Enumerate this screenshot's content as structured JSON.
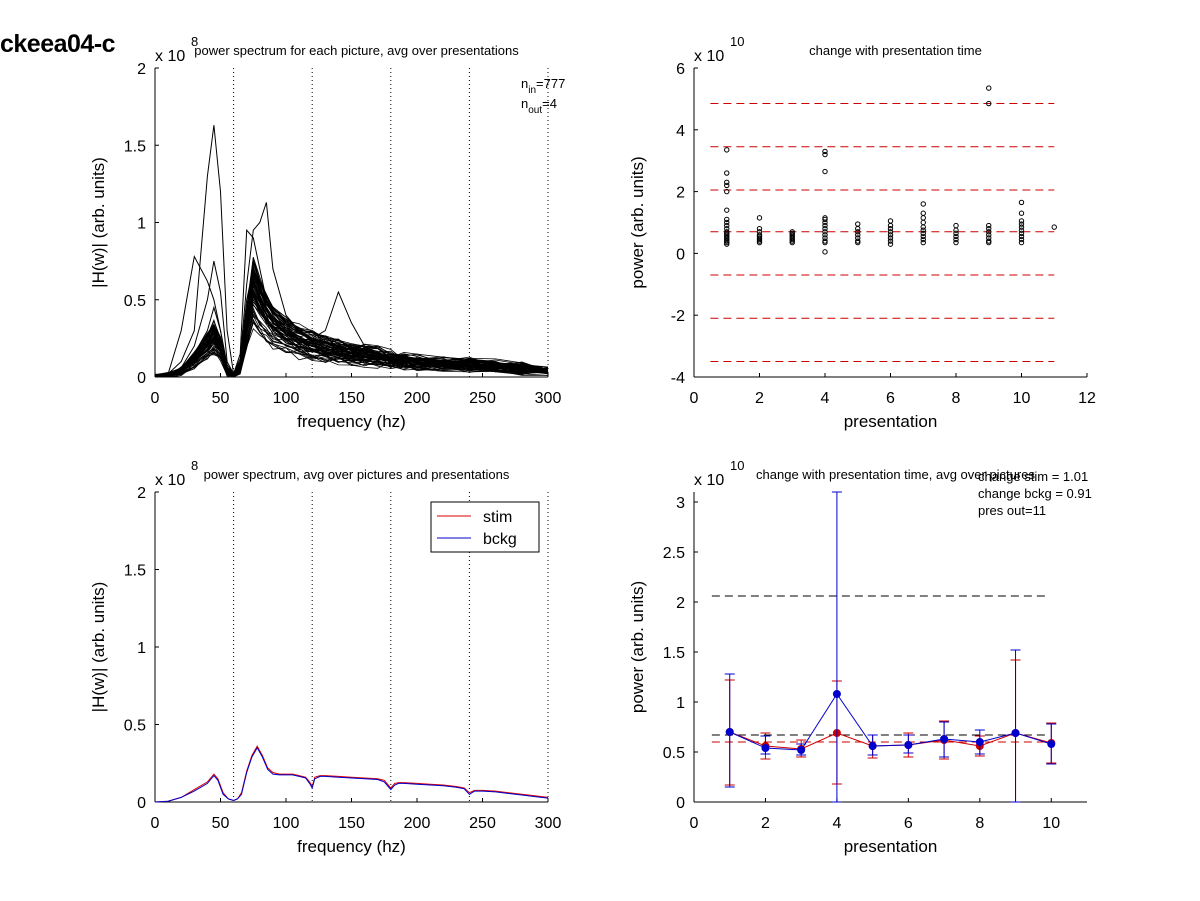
{
  "figure": {
    "title": "ckeea04-c"
  },
  "chart_data": [
    {
      "id": "tl",
      "type": "line",
      "title": "power spectrum for each picture, avg over presentations",
      "xlabel": "frequency (hz)",
      "ylabel": "|H(w)| (arb. units)",
      "exponent": "x 10",
      "exponent_power": "8",
      "xlim": [
        0,
        300
      ],
      "ylim": [
        0,
        2
      ],
      "xticks": [
        0,
        50,
        100,
        150,
        200,
        250,
        300
      ],
      "xtick_labels": [
        "0",
        "50",
        "100",
        "150",
        "200",
        "250",
        "300"
      ],
      "yticks": [
        0,
        0.5,
        1,
        1.5,
        2
      ],
      "ytick_labels": [
        "0",
        "0.5",
        "1",
        "1.5",
        "2"
      ],
      "vlines": [
        60,
        120,
        180,
        240,
        300
      ],
      "annotations": [
        {
          "text": "n",
          "sub": "in",
          "rest": "=777"
        },
        {
          "text": "n",
          "sub": "out",
          "rest": "=4"
        }
      ],
      "frequency": [
        0,
        10,
        20,
        30,
        40,
        45,
        50,
        55,
        60,
        65,
        70,
        75,
        80,
        85,
        90,
        100,
        110,
        120,
        130,
        140,
        150,
        160,
        170,
        180,
        190,
        200,
        220,
        240,
        260,
        280,
        300
      ],
      "n_traces": 60,
      "envelope_mean": [
        0,
        0.01,
        0.04,
        0.12,
        0.22,
        0.28,
        0.2,
        0.04,
        0.01,
        0.06,
        0.35,
        0.6,
        0.5,
        0.42,
        0.36,
        0.3,
        0.25,
        0.22,
        0.2,
        0.18,
        0.16,
        0.15,
        0.14,
        0.12,
        0.11,
        0.1,
        0.09,
        0.08,
        0.07,
        0.06,
        0.04
      ],
      "outlier_traces": [
        {
          "values": [
            0,
            0.02,
            0.3,
            0.78,
            0.62,
            0.5,
            0.3,
            0.08,
            0.02,
            0.1,
            0.4,
            0.55,
            0.48,
            0.4,
            0.3,
            0.22,
            0.2,
            0.18,
            0.16,
            0.15,
            0.14,
            0.13,
            0.12,
            0.11,
            0.1,
            0.1,
            0.09,
            0.08,
            0.07,
            0.06,
            0.05
          ]
        },
        {
          "values": [
            0,
            0.02,
            0.1,
            0.3,
            1.3,
            1.63,
            1.2,
            0.3,
            0.02,
            0.1,
            0.5,
            0.7,
            0.6,
            0.45,
            0.38,
            0.3,
            0.25,
            0.22,
            0.2,
            0.18,
            0.16,
            0.15,
            0.14,
            0.12,
            0.11,
            0.1,
            0.09,
            0.08,
            0.07,
            0.06,
            0.05
          ]
        },
        {
          "values": [
            0,
            0.01,
            0.06,
            0.2,
            0.5,
            0.75,
            0.55,
            0.1,
            0.02,
            0.12,
            0.6,
            0.95,
            1.0,
            1.13,
            0.7,
            0.4,
            0.3,
            0.25,
            0.22,
            0.2,
            0.18,
            0.16,
            0.15,
            0.13,
            0.12,
            0.11,
            0.1,
            0.09,
            0.08,
            0.07,
            0.05
          ]
        },
        {
          "values": [
            0,
            0.01,
            0.05,
            0.15,
            0.3,
            0.45,
            0.3,
            0.06,
            0.02,
            0.15,
            0.95,
            0.9,
            0.7,
            0.5,
            0.4,
            0.3,
            0.28,
            0.25,
            0.3,
            0.55,
            0.35,
            0.2,
            0.15,
            0.13,
            0.12,
            0.11,
            0.1,
            0.09,
            0.08,
            0.07,
            0.05
          ]
        }
      ]
    },
    {
      "id": "tr",
      "type": "scatter",
      "title": "change with presentation time",
      "xlabel": "presentation",
      "ylabel": "power (arb. units)",
      "exponent": "x 10",
      "exponent_power": "10",
      "xlim": [
        0,
        12
      ],
      "ylim": [
        -4,
        6
      ],
      "xticks": [
        0,
        2,
        4,
        6,
        8,
        10,
        12
      ],
      "xtick_labels": [
        "0",
        "2",
        "4",
        "6",
        "8",
        "10",
        "12"
      ],
      "yticks": [
        -4,
        -2,
        0,
        2,
        4,
        6
      ],
      "ytick_labels": [
        "-4",
        "-2",
        "0",
        "2",
        "4",
        "6"
      ],
      "hlines": [
        -3.5,
        -2.1,
        -0.7,
        0.7,
        2.05,
        3.45,
        4.85
      ],
      "hline_color": "#cc0000",
      "points": [
        {
          "x": 1,
          "y": [
            0.3,
            0.35,
            0.4,
            0.45,
            0.5,
            0.55,
            0.6,
            0.65,
            0.7,
            0.8,
            0.9,
            1.0,
            1.1,
            1.4,
            2.0,
            2.2,
            2.3,
            2.6,
            3.35
          ]
        },
        {
          "x": 2,
          "y": [
            0.35,
            0.4,
            0.45,
            0.5,
            0.55,
            0.6,
            0.7,
            0.8,
            1.15
          ]
        },
        {
          "x": 3,
          "y": [
            0.35,
            0.4,
            0.45,
            0.5,
            0.55,
            0.6,
            0.65,
            0.7
          ]
        },
        {
          "x": 4,
          "y": [
            0.05,
            0.35,
            0.4,
            0.5,
            0.6,
            0.7,
            0.8,
            0.9,
            1.0,
            1.1,
            1.15,
            2.65,
            3.2,
            3.3
          ]
        },
        {
          "x": 5,
          "y": [
            0.35,
            0.4,
            0.5,
            0.6,
            0.7,
            0.8,
            0.95
          ]
        },
        {
          "x": 6,
          "y": [
            0.3,
            0.4,
            0.5,
            0.6,
            0.7,
            0.8,
            0.9,
            1.05
          ]
        },
        {
          "x": 7,
          "y": [
            0.35,
            0.45,
            0.55,
            0.65,
            0.75,
            0.85,
            1.0,
            1.15,
            1.3,
            1.6
          ]
        },
        {
          "x": 8,
          "y": [
            0.35,
            0.45,
            0.55,
            0.65,
            0.75,
            0.9
          ]
        },
        {
          "x": 9,
          "y": [
            0.35,
            0.4,
            0.5,
            0.6,
            0.7,
            0.8,
            0.9,
            4.85,
            5.35
          ]
        },
        {
          "x": 10,
          "y": [
            0.35,
            0.45,
            0.55,
            0.65,
            0.75,
            0.85,
            0.95,
            1.05,
            1.3,
            1.65
          ]
        },
        {
          "x": 11,
          "y": [
            0.85
          ]
        }
      ]
    },
    {
      "id": "bl",
      "type": "line",
      "title": "power spectrum, avg over pictures and presentations",
      "xlabel": "frequency (hz)",
      "ylabel": "|H(w)| (arb. units)",
      "exponent": "x 10",
      "exponent_power": "8",
      "xlim": [
        0,
        300
      ],
      "ylim": [
        0,
        2
      ],
      "xticks": [
        0,
        50,
        100,
        150,
        200,
        250,
        300
      ],
      "xtick_labels": [
        "0",
        "50",
        "100",
        "150",
        "200",
        "250",
        "300"
      ],
      "yticks": [
        0,
        0.5,
        1,
        1.5,
        2
      ],
      "ytick_labels": [
        "0",
        "0.5",
        "1",
        "1.5",
        "2"
      ],
      "vlines": [
        60,
        120,
        180,
        240,
        300
      ],
      "legend": {
        "placement": "top-right"
      },
      "x": [
        0,
        10,
        20,
        30,
        40,
        45,
        48,
        52,
        56,
        60,
        63,
        66,
        70,
        74,
        78,
        82,
        86,
        90,
        95,
        100,
        105,
        110,
        115,
        118,
        120,
        122,
        126,
        130,
        140,
        150,
        160,
        170,
        175,
        178,
        180,
        183,
        186,
        190,
        200,
        210,
        220,
        230,
        236,
        240,
        244,
        250,
        260,
        270,
        280,
        290,
        300
      ],
      "series": [
        {
          "name": "stim",
          "color": "#dd0000",
          "values": [
            0,
            0.005,
            0.03,
            0.08,
            0.13,
            0.18,
            0.15,
            0.06,
            0.02,
            0.01,
            0.02,
            0.06,
            0.2,
            0.3,
            0.36,
            0.3,
            0.22,
            0.19,
            0.18,
            0.18,
            0.18,
            0.17,
            0.16,
            0.13,
            0.1,
            0.16,
            0.17,
            0.17,
            0.165,
            0.16,
            0.155,
            0.15,
            0.14,
            0.11,
            0.09,
            0.12,
            0.125,
            0.125,
            0.12,
            0.115,
            0.11,
            0.1,
            0.09,
            0.06,
            0.075,
            0.075,
            0.07,
            0.06,
            0.05,
            0.04,
            0.03
          ]
        },
        {
          "name": "bckg",
          "color": "#0000cc",
          "values": [
            0,
            0.005,
            0.03,
            0.07,
            0.12,
            0.17,
            0.14,
            0.05,
            0.02,
            0.01,
            0.02,
            0.05,
            0.19,
            0.29,
            0.35,
            0.29,
            0.21,
            0.18,
            0.175,
            0.175,
            0.175,
            0.165,
            0.155,
            0.12,
            0.09,
            0.15,
            0.165,
            0.165,
            0.16,
            0.155,
            0.15,
            0.145,
            0.13,
            0.1,
            0.08,
            0.11,
            0.12,
            0.12,
            0.115,
            0.11,
            0.105,
            0.095,
            0.085,
            0.05,
            0.07,
            0.07,
            0.065,
            0.055,
            0.045,
            0.035,
            0.025
          ]
        }
      ]
    },
    {
      "id": "br",
      "type": "line",
      "title": "change with presentation time, avg over pictures",
      "xlabel": "presentation",
      "ylabel": "power (arb. units)",
      "exponent": "x 10",
      "exponent_power": "10",
      "xlim": [
        0,
        11
      ],
      "ylim": [
        0,
        3.1
      ],
      "xticks": [
        0,
        2,
        4,
        6,
        8,
        10
      ],
      "xtick_labels": [
        "0",
        "2",
        "4",
        "6",
        "8",
        "10"
      ],
      "yticks": [
        0,
        0.5,
        1,
        1.5,
        2,
        2.5,
        3
      ],
      "ytick_labels": [
        "0",
        "0.5",
        "1",
        "1.5",
        "2",
        "2.5",
        "3"
      ],
      "notes": [
        "change stim = 1.01",
        "change bckg = 0.91",
        "pres out=11"
      ],
      "hlines": [
        {
          "y": 2.06,
          "color": "#000000"
        },
        {
          "y": 0.67,
          "color": "#000000"
        },
        {
          "y": 0.6,
          "color": "#cc0000"
        }
      ],
      "x": [
        1,
        2,
        3,
        4,
        5,
        6,
        7,
        8,
        9,
        10
      ],
      "series": [
        {
          "name": "stim",
          "color": "#cc0000",
          "values": [
            0.7,
            0.56,
            0.53,
            0.69,
            0.56,
            0.57,
            0.62,
            0.56,
            0.69,
            0.59
          ],
          "err_low": [
            0.17,
            0.43,
            0.45,
            0.18,
            0.44,
            0.45,
            0.43,
            0.46,
            0.0,
            0.39
          ],
          "err_high": [
            1.22,
            0.69,
            0.62,
            1.21,
            0.67,
            0.69,
            0.81,
            0.66,
            1.42,
            0.79
          ]
        },
        {
          "name": "bckg",
          "color": "#0000cc",
          "values": [
            0.7,
            0.54,
            0.52,
            1.08,
            0.56,
            0.57,
            0.63,
            0.6,
            0.69,
            0.58
          ],
          "err_low": [
            0.15,
            0.48,
            0.47,
            0.0,
            0.47,
            0.49,
            0.45,
            0.48,
            0.0,
            0.38
          ],
          "err_high": [
            1.28,
            0.66,
            0.58,
            3.1,
            0.67,
            0.67,
            0.8,
            0.72,
            1.52,
            0.78
          ]
        }
      ]
    }
  ]
}
